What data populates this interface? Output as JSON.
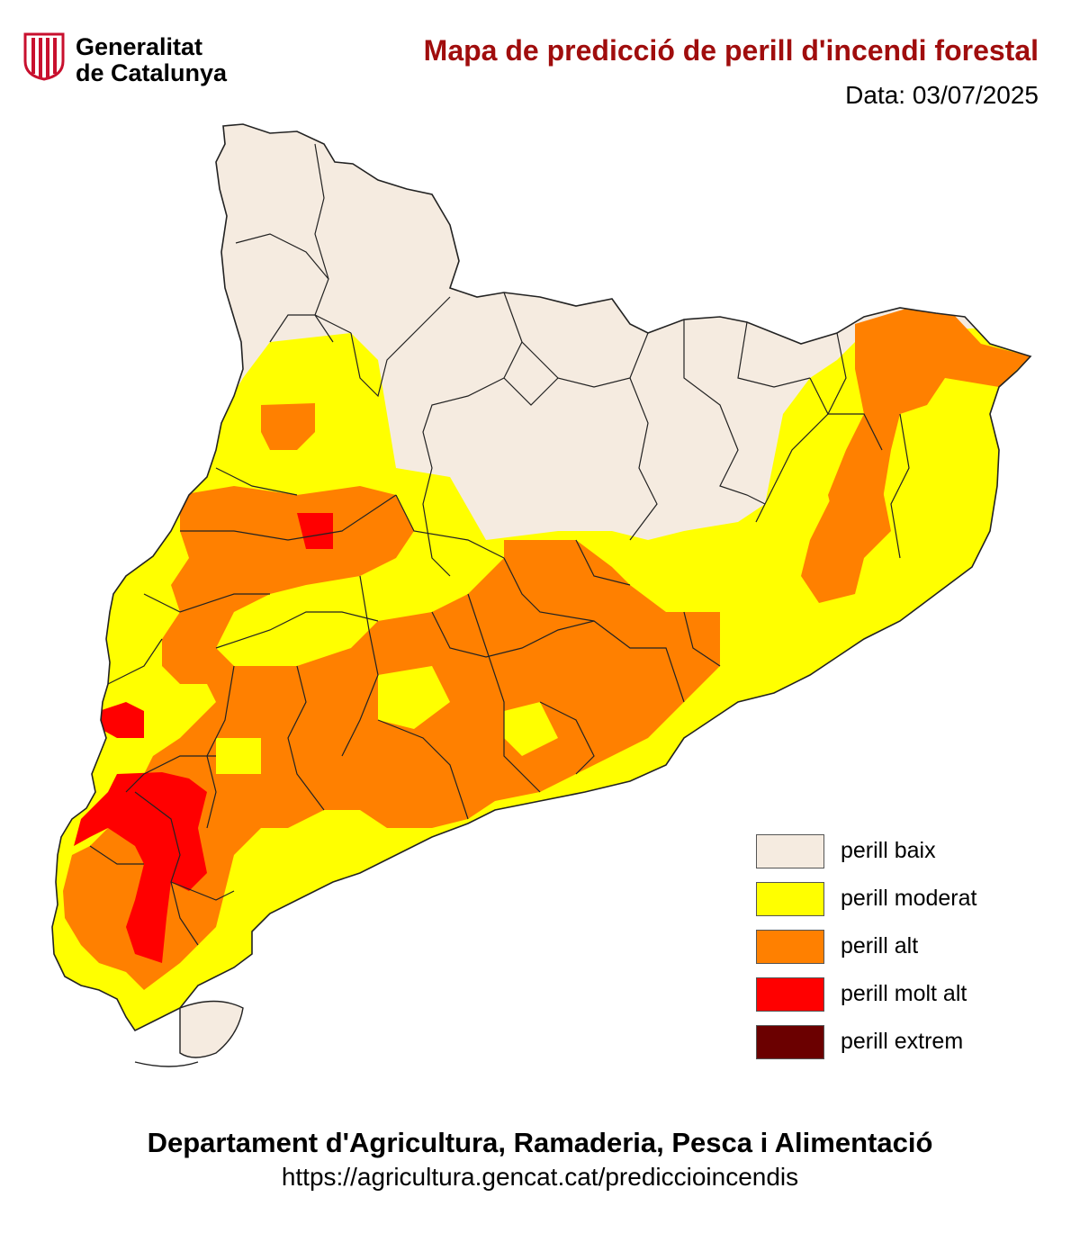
{
  "header": {
    "org_line1": "Generalitat",
    "org_line2": "de Catalunya",
    "title": "Mapa de predicció de perill d'incendi forestal",
    "date": "Data: 03/07/2025"
  },
  "colors": {
    "baix": "#f5ebe0",
    "moderat": "#ffff00",
    "alt": "#ff8000",
    "molt_alt": "#ff0000",
    "extrem": "#6b0000",
    "title": "#a00d0d",
    "logo": "#c8102e"
  },
  "legend": [
    {
      "label": "perill baix",
      "color": "#f5ebe0"
    },
    {
      "label": "perill moderat",
      "color": "#ffff00"
    },
    {
      "label": "perill alt",
      "color": "#ff8000"
    },
    {
      "label": "perill molt alt",
      "color": "#ff0000"
    },
    {
      "label": "perill extrem",
      "color": "#6b0000"
    }
  ],
  "footer": {
    "department": "Departament d'Agricultura, Ramaderia, Pesca i Alimentació",
    "url": "https://agricultura.gencat.cat/prediccioincendis"
  }
}
